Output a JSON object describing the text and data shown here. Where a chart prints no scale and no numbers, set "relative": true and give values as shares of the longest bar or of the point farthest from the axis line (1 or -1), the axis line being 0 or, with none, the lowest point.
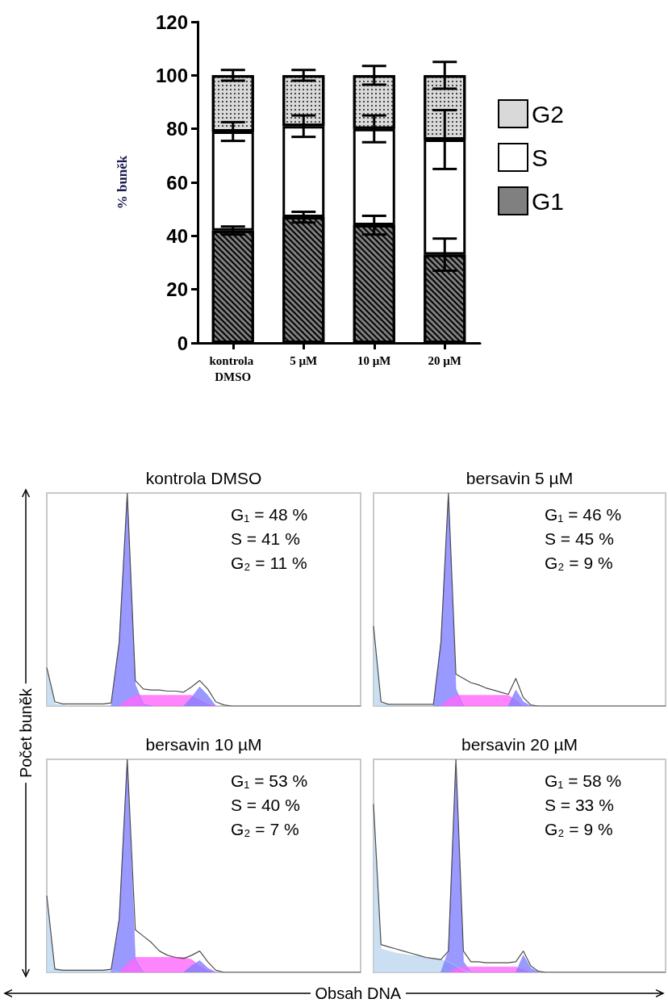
{
  "chart_data": [
    {
      "type": "bar",
      "stacked": true,
      "ylabel": "% buněk",
      "categories": [
        "kontrola DMSO",
        "5 µM",
        "10 µM",
        "20 µM"
      ],
      "series": [
        {
          "name": "G1",
          "color": "#808080",
          "values": [
            42,
            47,
            44,
            33
          ],
          "errors": [
            1.5,
            2,
            3.5,
            6
          ]
        },
        {
          "name": "S",
          "color": "#ffffff",
          "values": [
            37,
            34,
            36,
            43
          ],
          "errors": [
            3.5,
            4,
            5,
            11
          ]
        },
        {
          "name": "G2",
          "color": "#d9d9d9",
          "values": [
            21,
            19,
            20,
            24
          ],
          "errors": [
            2,
            2,
            3.5,
            5
          ]
        }
      ],
      "ylim": [
        0,
        120
      ],
      "yticks": [
        0,
        20,
        40,
        60,
        80,
        100,
        120
      ],
      "legend": "right"
    },
    {
      "type": "area",
      "relative": true,
      "title": "kontrola DMSO",
      "annotations": [
        "G₁ = 48 %",
        "S = 41 %",
        "G₂ = 11 %"
      ],
      "categories": [
        null,
        null,
        null,
        null,
        null,
        null,
        null,
        null,
        null,
        null,
        null,
        null,
        null,
        null,
        null,
        null,
        null,
        null,
        null,
        null,
        null,
        null,
        null,
        null,
        null,
        null,
        null,
        null,
        null,
        null,
        null,
        null,
        null,
        null,
        null,
        null,
        null,
        null,
        null,
        null
      ],
      "series": [
        {
          "color": "#bdd7ee",
          "values": [
            0.18,
            0.01,
            0.005,
            0,
            null,
            null,
            null,
            null,
            null,
            null,
            null,
            null,
            null,
            null,
            null,
            null,
            null,
            null,
            null,
            null,
            null,
            null,
            null,
            null,
            null,
            null,
            null,
            null,
            null,
            null,
            null,
            null,
            null,
            null,
            null,
            null,
            null,
            null,
            null,
            null
          ]
        },
        {
          "color": "#8080ff",
          "values": [
            null,
            null,
            null,
            null,
            null,
            null,
            null,
            null,
            0,
            0.3,
            0.98,
            0.1,
            0.01,
            0,
            null,
            null,
            null,
            null,
            null,
            null,
            null,
            null,
            null,
            null,
            null,
            null,
            null,
            null,
            null,
            null,
            null,
            null,
            null,
            null,
            null,
            null,
            null,
            null,
            null,
            null
          ]
        },
        {
          "color": "#ff66ff",
          "values": [
            null,
            null,
            null,
            null,
            null,
            null,
            null,
            null,
            null,
            0,
            0.03,
            0.05,
            0.05,
            0.05,
            0.05,
            0.05,
            0.05,
            0.05,
            0.05,
            0.03,
            0.01,
            0,
            null,
            null,
            null,
            null,
            null,
            null,
            null,
            null,
            null,
            null,
            null,
            null,
            null,
            null,
            null,
            null,
            null,
            null
          ]
        },
        {
          "color": "#8080ff",
          "values": [
            null,
            null,
            null,
            null,
            null,
            null,
            null,
            null,
            null,
            null,
            null,
            null,
            null,
            null,
            null,
            null,
            null,
            0,
            0.04,
            0.09,
            0.05,
            0,
            null,
            null,
            null,
            null,
            null,
            null,
            null,
            null,
            null,
            null,
            null,
            null,
            null,
            null,
            null,
            null,
            null,
            null
          ]
        },
        {
          "type": "line",
          "color": "#4d4d4d",
          "values": [
            0.18,
            0.02,
            0.01,
            0.01,
            0.01,
            0.01,
            0.01,
            0.01,
            0.015,
            0.3,
            1,
            0.12,
            0.08,
            0.075,
            0.075,
            0.07,
            0.07,
            0.065,
            0.09,
            0.12,
            0.08,
            0.02,
            0.005,
            0,
            0,
            0,
            0,
            0,
            0,
            0,
            0,
            0,
            0,
            0,
            0,
            0,
            0,
            0,
            0,
            0
          ]
        }
      ]
    },
    {
      "type": "area",
      "relative": true,
      "title": "bersavin 5 µM",
      "annotations": [
        "G₁ = 46 %",
        "S = 45 %",
        "G₂ = 9 %"
      ],
      "categories": [
        null,
        null,
        null,
        null,
        null,
        null,
        null,
        null,
        null,
        null,
        null,
        null,
        null,
        null,
        null,
        null,
        null,
        null,
        null,
        null,
        null,
        null,
        null,
        null,
        null,
        null,
        null,
        null,
        null,
        null,
        null,
        null,
        null,
        null,
        null,
        null,
        null,
        null,
        null,
        null
      ],
      "series": [
        {
          "color": "#bdd7ee",
          "values": [
            0.375,
            0.015,
            0.005,
            0,
            null,
            null,
            null,
            null,
            null,
            null,
            null,
            null,
            null,
            null,
            null,
            null,
            null,
            null,
            null,
            null,
            null,
            null,
            null,
            null,
            null,
            null,
            null,
            null,
            null,
            null,
            null,
            null,
            null,
            null,
            null,
            null,
            null,
            null,
            null,
            null
          ]
        },
        {
          "color": "#8080ff",
          "values": [
            null,
            null,
            null,
            null,
            null,
            null,
            null,
            null,
            0,
            0.3,
            0.98,
            0.08,
            0,
            null,
            null,
            null,
            null,
            null,
            null,
            null,
            null,
            null,
            null,
            null,
            null,
            null,
            null,
            null,
            null,
            null,
            null,
            null,
            null,
            null,
            null,
            null,
            null,
            null,
            null,
            null
          ]
        },
        {
          "color": "#ff66ff",
          "values": [
            null,
            null,
            null,
            null,
            null,
            null,
            null,
            null,
            null,
            0,
            0.03,
            0.05,
            0.05,
            0.05,
            0.05,
            0.05,
            0.05,
            0.05,
            0.05,
            0.03,
            0,
            null,
            null,
            null,
            null,
            null,
            null,
            null,
            null,
            null,
            null,
            null,
            null,
            null,
            null,
            null,
            null,
            null,
            null,
            null
          ]
        },
        {
          "color": "#8080ff",
          "values": [
            null,
            null,
            null,
            null,
            null,
            null,
            null,
            null,
            null,
            null,
            null,
            null,
            null,
            null,
            null,
            null,
            null,
            null,
            0,
            0.075,
            0.02,
            0,
            null,
            null,
            null,
            null,
            null,
            null,
            null,
            null,
            null,
            null,
            null,
            null,
            null,
            null,
            null,
            null,
            null,
            null
          ]
        },
        {
          "type": "line",
          "color": "#4d4d4d",
          "values": [
            0.375,
            0.02,
            0.008,
            0.008,
            0.008,
            0.008,
            0.008,
            0.008,
            0.008,
            0.3,
            1,
            0.15,
            0.13,
            0.11,
            0.1,
            0.085,
            0.075,
            0.065,
            0.055,
            0.13,
            0.04,
            0.005,
            0,
            0,
            0,
            0,
            0,
            0,
            0,
            0,
            0,
            0,
            0,
            0,
            0,
            0,
            0,
            0,
            0,
            0
          ]
        }
      ]
    },
    {
      "type": "area",
      "relative": true,
      "title": "bersavin 10 µM",
      "xlabel": "Obsah DNA",
      "ylabel": "Počet buněk",
      "annotations": [
        "G₁ = 53 %",
        "S = 40 %",
        "G₂ = 7 %"
      ],
      "categories": [
        null,
        null,
        null,
        null,
        null,
        null,
        null,
        null,
        null,
        null,
        null,
        null,
        null,
        null,
        null,
        null,
        null,
        null,
        null,
        null,
        null,
        null,
        null,
        null,
        null,
        null,
        null,
        null,
        null,
        null,
        null,
        null,
        null,
        null,
        null,
        null,
        null,
        null,
        null,
        null
      ],
      "series": [
        {
          "color": "#bdd7ee",
          "values": [
            0.36,
            0.02,
            0.01,
            0.01,
            0.01,
            0.01,
            0.01,
            0.01,
            0.01,
            0,
            null,
            null,
            null,
            null,
            null,
            null,
            null,
            null,
            null,
            null,
            null,
            null,
            null,
            null,
            null,
            null,
            null,
            null,
            null,
            null,
            null,
            null,
            null,
            null,
            null,
            null,
            null,
            null,
            null,
            null
          ]
        },
        {
          "color": "#8080ff",
          "values": [
            null,
            null,
            null,
            null,
            null,
            null,
            null,
            null,
            0,
            0.25,
            0.98,
            0.06,
            0,
            null,
            null,
            null,
            null,
            null,
            null,
            null,
            null,
            null,
            null,
            null,
            null,
            null,
            null,
            null,
            null,
            null,
            null,
            null,
            null,
            null,
            null,
            null,
            null,
            null,
            null,
            null
          ]
        },
        {
          "color": "#ff66ff",
          "values": [
            null,
            null,
            null,
            null,
            null,
            null,
            null,
            null,
            null,
            0,
            0.04,
            0.07,
            0.07,
            0.07,
            0.07,
            0.07,
            0.07,
            0.07,
            0.06,
            0.03,
            0.01,
            0,
            null,
            null,
            null,
            null,
            null,
            null,
            null,
            null,
            null,
            null,
            null,
            null,
            null,
            null,
            null,
            null,
            null,
            null
          ]
        },
        {
          "color": "#8080ff",
          "values": [
            null,
            null,
            null,
            null,
            null,
            null,
            null,
            null,
            null,
            null,
            null,
            null,
            null,
            null,
            null,
            null,
            null,
            0,
            0.03,
            0.055,
            0.02,
            0,
            null,
            null,
            null,
            null,
            null,
            null,
            null,
            null,
            null,
            null,
            null,
            null,
            null,
            null,
            null,
            null,
            null,
            null
          ]
        },
        {
          "type": "line",
          "color": "#4d4d4d",
          "values": [
            0.36,
            0.015,
            0.01,
            0.01,
            0.01,
            0.01,
            0.01,
            0.01,
            0.015,
            0.25,
            1,
            0.2,
            0.17,
            0.14,
            0.1,
            0.08,
            0.07,
            0.065,
            0.08,
            0.1,
            0.05,
            0.01,
            0,
            0,
            0,
            0,
            0,
            0,
            0,
            0,
            0,
            0,
            0,
            0,
            0,
            0,
            0,
            0,
            0,
            0
          ]
        }
      ]
    },
    {
      "type": "area",
      "relative": true,
      "title": "bersavin 20 µM",
      "annotations": [
        "G₁ = 58 %",
        "S = 33 %",
        "G₂ = 9 %"
      ],
      "categories": [
        null,
        null,
        null,
        null,
        null,
        null,
        null,
        null,
        null,
        null,
        null,
        null,
        null,
        null,
        null,
        null,
        null,
        null,
        null,
        null,
        null,
        null,
        null,
        null,
        null,
        null,
        null,
        null,
        null,
        null,
        null,
        null,
        null,
        null,
        null,
        null,
        null,
        null,
        null,
        null
      ],
      "series": [
        {
          "color": "#bdd7ee",
          "values": [
            0.79,
            0.11,
            0.1,
            0.09,
            0.085,
            0.08,
            0.075,
            0.07,
            0.065,
            0.06,
            0.05,
            0.03,
            0.01,
            0,
            null,
            null,
            null,
            null,
            null,
            null,
            null,
            null,
            null,
            null,
            null,
            null,
            null,
            null,
            null,
            null,
            null,
            null,
            null,
            null,
            null,
            null,
            null,
            null,
            null,
            null
          ]
        },
        {
          "color": "#8080ff",
          "values": [
            null,
            null,
            null,
            null,
            null,
            null,
            null,
            null,
            null,
            0,
            0.1,
            0.97,
            0.05,
            0,
            null,
            null,
            null,
            null,
            null,
            null,
            null,
            null,
            null,
            null,
            null,
            null,
            null,
            null,
            null,
            null,
            null,
            null,
            null,
            null,
            null,
            null,
            null,
            null,
            null,
            null
          ]
        },
        {
          "color": "#ff66ff",
          "values": [
            null,
            null,
            null,
            null,
            null,
            null,
            null,
            null,
            null,
            null,
            0,
            0.02,
            0.025,
            0.025,
            0.025,
            0.025,
            0.025,
            0.025,
            0.025,
            0.025,
            0.015,
            0,
            null,
            null,
            null,
            null,
            null,
            null,
            null,
            null,
            null,
            null,
            null,
            null,
            null,
            null,
            null,
            null,
            null,
            null
          ]
        },
        {
          "color": "#8080ff",
          "values": [
            null,
            null,
            null,
            null,
            null,
            null,
            null,
            null,
            null,
            null,
            null,
            null,
            null,
            null,
            null,
            null,
            null,
            null,
            null,
            0,
            0.08,
            0.02,
            0,
            null,
            null,
            null,
            null,
            null,
            null,
            null,
            null,
            null,
            null,
            null,
            null,
            null,
            null,
            null,
            null,
            null
          ]
        },
        {
          "type": "line",
          "color": "#4d4d4d",
          "values": [
            0.79,
            0.13,
            0.12,
            0.11,
            0.1,
            0.09,
            0.08,
            0.07,
            0.065,
            0.06,
            0.1,
            1,
            0.1,
            0.05,
            0.05,
            0.045,
            0.045,
            0.045,
            0.045,
            0.05,
            0.1,
            0.03,
            0.005,
            0,
            0,
            0,
            0,
            0,
            0,
            0,
            0,
            0,
            0,
            0,
            0,
            0,
            0,
            0,
            0,
            0
          ]
        }
      ]
    }
  ]
}
